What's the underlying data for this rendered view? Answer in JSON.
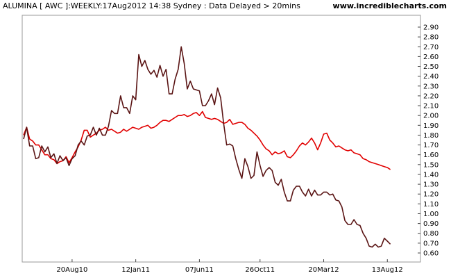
{
  "header": {
    "title": "ALUMINA [ AWC ]:WEEKLY:17Aug2012 14:38 Sydney : Data Delayed > 20mins",
    "site": "www.incrediblecharts.com"
  },
  "chart_data": {
    "type": "line",
    "title": "",
    "xlabel": "",
    "ylabel": "",
    "ylim": [
      0.55,
      2.95
    ],
    "y_axis_position": "right",
    "grid": false,
    "y_ticks": [
      "0.60",
      "0.70",
      "0.80",
      "0.90",
      "1.00",
      "1.10",
      "1.20",
      "1.30",
      "1.40",
      "1.50",
      "1.60",
      "1.70",
      "1.80",
      "1.90",
      "2.00",
      "2.10",
      "2.20",
      "2.30",
      "2.40",
      "2.50",
      "2.60",
      "2.70",
      "2.80",
      "2.90"
    ],
    "x_ticks": [
      {
        "label": "20Aug10",
        "week": 16
      },
      {
        "label": "12Jan11",
        "week": 37
      },
      {
        "label": "07Jun11",
        "week": 58
      },
      {
        "label": "26Oct11",
        "week": 78
      },
      {
        "label": "20Mar12",
        "week": 99
      },
      {
        "label": "13Aug12",
        "week": 120
      }
    ],
    "x_range": [
      0,
      122
    ],
    "series": [
      {
        "color": "#5a1414",
        "values": [
          1.76,
          1.88,
          1.69,
          1.69,
          1.56,
          1.57,
          1.69,
          1.63,
          1.68,
          1.57,
          1.61,
          1.51,
          1.59,
          1.54,
          1.57,
          1.49,
          1.56,
          1.59,
          1.7,
          1.74,
          1.7,
          1.79,
          1.8,
          1.88,
          1.8,
          1.87,
          1.8,
          1.8,
          1.89,
          2.05,
          2.02,
          2.02,
          2.2,
          2.08,
          2.08,
          2.02,
          2.2,
          2.16,
          2.62,
          2.5,
          2.56,
          2.47,
          2.42,
          2.46,
          2.39,
          2.51,
          2.4,
          2.47,
          2.22,
          2.22,
          2.37,
          2.47,
          2.7,
          2.53,
          2.27,
          2.35,
          2.27,
          2.26,
          2.25,
          2.1,
          2.1,
          2.15,
          2.22,
          2.11,
          2.28,
          2.18,
          1.92,
          1.7,
          1.71,
          1.69,
          1.56,
          1.45,
          1.36,
          1.56,
          1.48,
          1.36,
          1.39,
          1.63,
          1.49,
          1.38,
          1.44,
          1.47,
          1.44,
          1.32,
          1.29,
          1.35,
          1.22,
          1.13,
          1.13,
          1.24,
          1.28,
          1.28,
          1.22,
          1.18,
          1.25,
          1.18,
          1.24,
          1.19,
          1.19,
          1.22,
          1.22,
          1.19,
          1.2,
          1.14,
          1.13,
          1.07,
          0.93,
          0.89,
          0.89,
          0.94,
          0.89,
          0.88,
          0.8,
          0.75,
          0.67,
          0.66,
          0.69,
          0.66,
          0.67,
          0.75,
          0.72,
          0.69
        ]
      },
      {
        "color": "#e10000",
        "values": [
          1.8,
          1.88,
          1.76,
          1.74,
          1.7,
          1.7,
          1.65,
          1.6,
          1.6,
          1.56,
          1.55,
          1.51,
          1.53,
          1.54,
          1.58,
          1.52,
          1.57,
          1.63,
          1.68,
          1.75,
          1.85,
          1.85,
          1.78,
          1.8,
          1.82,
          1.85,
          1.86,
          1.88,
          1.85,
          1.86,
          1.84,
          1.82,
          1.83,
          1.86,
          1.84,
          1.86,
          1.88,
          1.87,
          1.86,
          1.88,
          1.89,
          1.9,
          1.87,
          1.88,
          1.9,
          1.93,
          1.95,
          1.95,
          1.94,
          1.96,
          1.98,
          2.0,
          2.0,
          2.01,
          1.99,
          2.0,
          2.02,
          2.03,
          2.0,
          2.04,
          1.98,
          1.97,
          1.96,
          1.97,
          1.96,
          1.94,
          1.92,
          1.93,
          1.96,
          1.91,
          1.92,
          1.93,
          1.93,
          1.91,
          1.87,
          1.85,
          1.82,
          1.79,
          1.75,
          1.7,
          1.66,
          1.64,
          1.6,
          1.63,
          1.61,
          1.62,
          1.64,
          1.58,
          1.57,
          1.6,
          1.64,
          1.69,
          1.72,
          1.7,
          1.73,
          1.77,
          1.72,
          1.65,
          1.72,
          1.81,
          1.82,
          1.75,
          1.72,
          1.68,
          1.69,
          1.67,
          1.65,
          1.64,
          1.65,
          1.62,
          1.61,
          1.6,
          1.56,
          1.55,
          1.53,
          1.52,
          1.51,
          1.5,
          1.49,
          1.48,
          1.47,
          1.45
        ]
      }
    ]
  }
}
